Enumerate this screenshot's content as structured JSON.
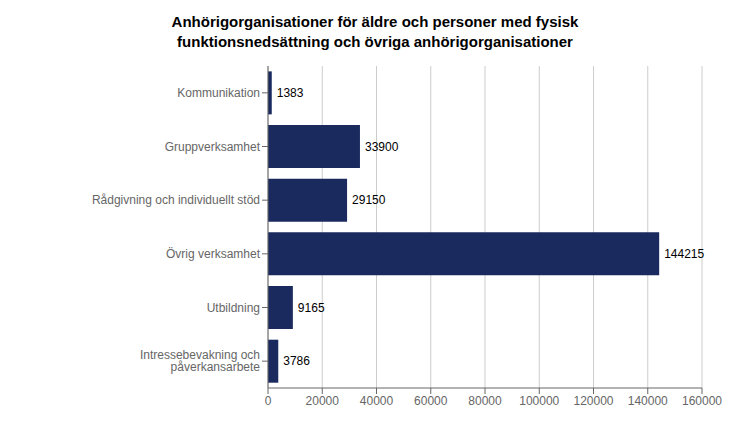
{
  "chart_data": {
    "type": "bar",
    "orientation": "horizontal",
    "title": "Anhörigorganisationer för äldre och personer med fysisk\nfunktionsnedsättning och övriga anhörigorganisationer",
    "categories": [
      "Kommunikation",
      "Gruppverksamhet",
      "Rådgivning och individuellt stöd",
      "Övrig verksamhet",
      "Utbildning",
      "Intressebevakning och påverkansarbete"
    ],
    "values": [
      1383,
      33900,
      29150,
      144215,
      9165,
      3786
    ],
    "color": "#1a2a5e",
    "xlim": [
      0,
      160000
    ],
    "xticks": [
      0,
      20000,
      40000,
      60000,
      80000,
      100000,
      120000,
      140000,
      160000
    ],
    "grid": true,
    "data_labels": true
  }
}
